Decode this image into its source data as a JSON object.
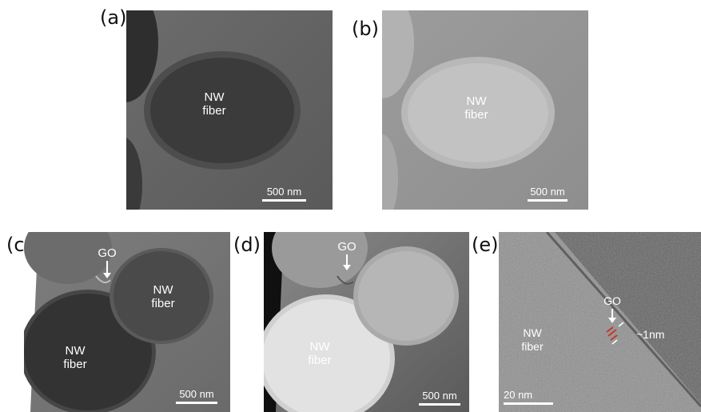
{
  "panels": {
    "a": {
      "label": "(a)",
      "fiber_label": "NW\nfiber",
      "scale": "500 nm"
    },
    "b": {
      "label": "(b)",
      "fiber_label": "NW\nfiber",
      "scale": "500 nm"
    },
    "c": {
      "label": "(c)",
      "go_label": "GO",
      "fiber_label_1": "NW\nfiber",
      "fiber_label_2": "NW\nfiber",
      "scale": "500 nm"
    },
    "d": {
      "label": "(d)",
      "go_label": "GO",
      "fiber_label": "NW\nfiber",
      "scale": "500 nm"
    },
    "e": {
      "label": "(e)",
      "go_label": "GO",
      "fiber_label": "NW\nfiber",
      "thickness": "~1nm",
      "scale": "20 nm"
    }
  },
  "colors": {
    "background": "#ffffff",
    "annotation": "#ffffff",
    "go_marker": "#c0392b"
  }
}
